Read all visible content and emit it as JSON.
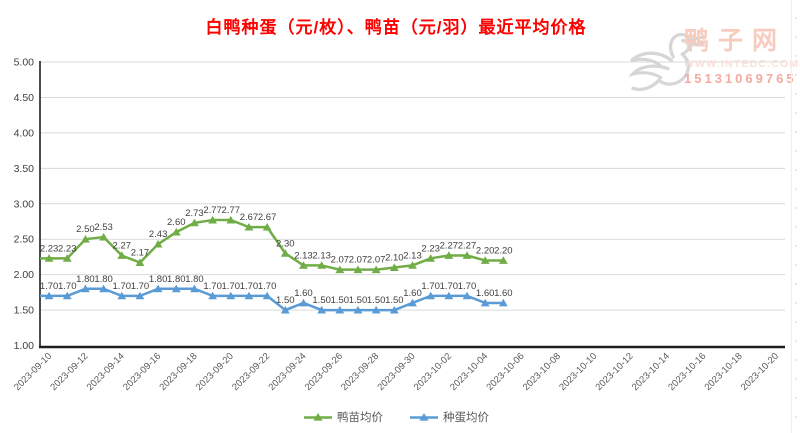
{
  "title": {
    "text": "白鸭种蛋（元/枚）、鸭苗（元/羽）最近平均价格",
    "color": "#FF0000"
  },
  "watermark": {
    "brand": "鸭子网",
    "website": "WWW.INTEDC.COM",
    "phone": "15131069765",
    "brand_color": "#f7ccbf",
    "website_color": "#fadfd8",
    "phone_color": "#f3aba0",
    "logo_color": "#d6d6d6"
  },
  "colors": {
    "grid": "#D9D9D9",
    "axis": "#1f1f1f",
    "tick_label": "#595959",
    "value_label": "#404040",
    "data_label": "#404040"
  },
  "chart_data": {
    "type": "line",
    "title": "白鸭种蛋（元/枚）、鸭苗（元/羽）最近平均价格",
    "xlabel": "",
    "ylabel": "",
    "ylim": [
      1.0,
      5.0
    ],
    "y_tick_step": 0.5,
    "y_tick_labels": [
      "5.00",
      "4.50",
      "4.00",
      "3.50",
      "3.00",
      "2.50",
      "2.00",
      "1.50",
      "1.00"
    ],
    "grid": true,
    "legend_position": "bottom",
    "x_axis_range": [
      "2023-09-10",
      "2023-10-20"
    ],
    "x_slot_count": 41,
    "x_tick_labels": [
      "2023-09-10",
      "2023-09-12",
      "2023-09-14",
      "2023-09-16",
      "2023-09-18",
      "2023-09-20",
      "2023-09-22",
      "2023-09-24",
      "2023-09-26",
      "2023-09-28",
      "2023-09-30",
      "2023-10-02",
      "2023-10-04",
      "2023-10-06",
      "2023-10-08",
      "2023-10-10",
      "2023-10-12",
      "2023-10-14",
      "2023-10-16",
      "2023-10-18",
      "2023-10-20"
    ],
    "data_dates": [
      "2023-09-10",
      "2023-09-11",
      "2023-09-12",
      "2023-09-13",
      "2023-09-14",
      "2023-09-15",
      "2023-09-16",
      "2023-09-17",
      "2023-09-18",
      "2023-09-19",
      "2023-09-20",
      "2023-09-21",
      "2023-09-22",
      "2023-09-23",
      "2023-09-24",
      "2023-09-25",
      "2023-09-26",
      "2023-09-27",
      "2023-09-28",
      "2023-09-29",
      "2023-09-30",
      "2023-10-01",
      "2023-10-02",
      "2023-10-03",
      "2023-10-04",
      "2023-10-05"
    ],
    "series": [
      {
        "name": "鸭苗均价",
        "color": "#70AD47",
        "marker": "triangle",
        "values": [
          2.23,
          2.23,
          2.5,
          2.53,
          2.27,
          2.17,
          2.43,
          2.6,
          2.73,
          2.77,
          2.77,
          2.67,
          2.67,
          2.3,
          2.13,
          2.13,
          2.07,
          2.07,
          2.07,
          2.1,
          2.13,
          2.23,
          2.27,
          2.27,
          2.2,
          2.2
        ]
      },
      {
        "name": "种蛋均价",
        "color": "#5B9BD5",
        "marker": "triangle",
        "values": [
          1.7,
          1.7,
          1.8,
          1.8,
          1.7,
          1.7,
          1.8,
          1.8,
          1.8,
          1.7,
          1.7,
          1.7,
          1.7,
          1.5,
          1.6,
          1.5,
          1.5,
          1.5,
          1.5,
          1.5,
          1.6,
          1.7,
          1.7,
          1.7,
          1.6,
          1.6
        ]
      }
    ]
  }
}
